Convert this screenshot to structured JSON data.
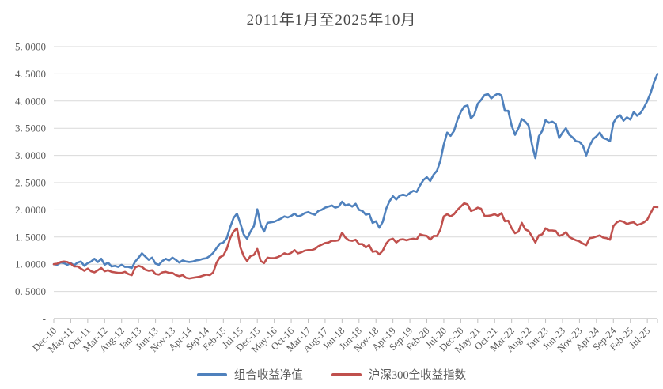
{
  "chart_data": {
    "type": "line",
    "title": "2011年1月至2025年10月",
    "x_unit": "month",
    "x_start": "Dec-10",
    "x_end": "Oct-25",
    "n_points": 179,
    "x_tick_interval_months": 5,
    "x_tick_labels": [
      "Dec-10",
      "May-11",
      "Oct-11",
      "Mar-12",
      "Aug-12",
      "Jan-13",
      "Jun-13",
      "Nov-13",
      "Apr-14",
      "Sep-14",
      "Feb-15",
      "Jul-15",
      "Dec-15",
      "May-16",
      "Oct-16",
      "Mar-17",
      "Aug-17",
      "Jan-18",
      "Jun-18",
      "Nov-18",
      "Apr-19",
      "Sep-19",
      "Feb-20",
      "Jul-20",
      "Dec-20",
      "May-21",
      "Oct-21",
      "Mar-22",
      "Aug-22",
      "Jan-23",
      "Jun-23",
      "Nov-23",
      "Apr-24",
      "Sep-24",
      "Feb-25",
      "Jul-25"
    ],
    "ylim": [
      0,
      5
    ],
    "y_tick_step": 0.5,
    "y_tick_labels_top_to_bottom": [
      "5. 0000",
      "4. 5000",
      "4. 0000",
      "3. 5000",
      "3. 0000",
      "2. 5000",
      "2. 0000",
      "1. 5000",
      "1. 0000",
      "0. 5000",
      "-"
    ],
    "grid": "horizontal",
    "legend_position": "bottom",
    "colors": {
      "gridline": "#D9D9D9",
      "axis": "#BFBFBF",
      "axis_text": "#595959",
      "title_text": "#474747"
    },
    "series": [
      {
        "name": "组合收益净值",
        "color": "#4F81BD",
        "values": [
          1.0,
          0.99,
          1.03,
          1.02,
          0.99,
          1.02,
          0.98,
          1.03,
          1.05,
          0.97,
          1.02,
          1.05,
          1.1,
          1.04,
          1.1,
          0.99,
          1.03,
          0.96,
          0.97,
          0.95,
          0.99,
          0.95,
          0.95,
          0.93,
          1.05,
          1.12,
          1.2,
          1.14,
          1.08,
          1.12,
          1.01,
          0.99,
          1.06,
          1.1,
          1.07,
          1.12,
          1.08,
          1.03,
          1.07,
          1.05,
          1.04,
          1.05,
          1.07,
          1.08,
          1.1,
          1.11,
          1.15,
          1.21,
          1.3,
          1.38,
          1.4,
          1.48,
          1.68,
          1.85,
          1.93,
          1.75,
          1.55,
          1.47,
          1.6,
          1.7,
          2.01,
          1.72,
          1.6,
          1.76,
          1.77,
          1.78,
          1.81,
          1.84,
          1.88,
          1.86,
          1.89,
          1.93,
          1.88,
          1.9,
          1.94,
          1.96,
          1.93,
          1.91,
          1.98,
          2.0,
          2.04,
          2.06,
          2.08,
          2.04,
          2.06,
          2.15,
          2.08,
          2.1,
          2.06,
          2.11,
          2.0,
          1.98,
          1.91,
          1.93,
          1.76,
          1.79,
          1.67,
          1.78,
          2.02,
          2.16,
          2.25,
          2.19,
          2.26,
          2.28,
          2.26,
          2.31,
          2.35,
          2.33,
          2.45,
          2.55,
          2.6,
          2.53,
          2.65,
          2.72,
          2.91,
          3.2,
          3.42,
          3.36,
          3.45,
          3.65,
          3.8,
          3.9,
          3.92,
          3.68,
          3.75,
          3.95,
          4.02,
          4.11,
          4.13,
          4.05,
          4.1,
          4.14,
          4.1,
          3.82,
          3.82,
          3.55,
          3.38,
          3.5,
          3.67,
          3.62,
          3.55,
          3.2,
          2.95,
          3.35,
          3.45,
          3.65,
          3.6,
          3.62,
          3.58,
          3.32,
          3.42,
          3.5,
          3.38,
          3.33,
          3.26,
          3.25,
          3.18,
          3.0,
          3.18,
          3.3,
          3.35,
          3.42,
          3.32,
          3.3,
          3.26,
          3.6,
          3.7,
          3.74,
          3.64,
          3.7,
          3.66,
          3.8,
          3.73,
          3.78,
          3.88,
          4.0,
          4.15,
          4.35,
          4.5
        ]
      },
      {
        "name": "沪深300全收益指数",
        "color": "#C0504D",
        "values": [
          1.0,
          1.01,
          1.04,
          1.05,
          1.04,
          1.01,
          0.96,
          0.96,
          0.92,
          0.88,
          0.92,
          0.87,
          0.85,
          0.89,
          0.93,
          0.87,
          0.89,
          0.86,
          0.85,
          0.84,
          0.84,
          0.86,
          0.82,
          0.8,
          0.94,
          0.97,
          0.95,
          0.9,
          0.88,
          0.89,
          0.82,
          0.81,
          0.85,
          0.86,
          0.84,
          0.84,
          0.8,
          0.78,
          0.8,
          0.75,
          0.74,
          0.75,
          0.76,
          0.77,
          0.79,
          0.81,
          0.8,
          0.85,
          1.03,
          1.13,
          1.16,
          1.28,
          1.48,
          1.6,
          1.66,
          1.31,
          1.15,
          1.06,
          1.15,
          1.17,
          1.28,
          1.06,
          1.02,
          1.12,
          1.11,
          1.11,
          1.13,
          1.16,
          1.2,
          1.18,
          1.21,
          1.26,
          1.2,
          1.22,
          1.25,
          1.26,
          1.26,
          1.28,
          1.33,
          1.36,
          1.39,
          1.4,
          1.43,
          1.43,
          1.44,
          1.58,
          1.49,
          1.44,
          1.43,
          1.45,
          1.37,
          1.37,
          1.31,
          1.35,
          1.23,
          1.24,
          1.18,
          1.25,
          1.38,
          1.45,
          1.47,
          1.4,
          1.45,
          1.46,
          1.44,
          1.46,
          1.47,
          1.46,
          1.55,
          1.53,
          1.52,
          1.45,
          1.52,
          1.52,
          1.64,
          1.88,
          1.92,
          1.88,
          1.92,
          2.0,
          2.06,
          2.12,
          2.1,
          1.98,
          2.0,
          2.04,
          2.02,
          1.89,
          1.89,
          1.9,
          1.92,
          1.89,
          1.94,
          1.79,
          1.8,
          1.66,
          1.57,
          1.6,
          1.76,
          1.64,
          1.61,
          1.51,
          1.4,
          1.53,
          1.55,
          1.66,
          1.62,
          1.62,
          1.61,
          1.52,
          1.54,
          1.59,
          1.5,
          1.47,
          1.44,
          1.42,
          1.38,
          1.35,
          1.48,
          1.49,
          1.51,
          1.53,
          1.49,
          1.48,
          1.45,
          1.7,
          1.77,
          1.8,
          1.78,
          1.74,
          1.76,
          1.77,
          1.72,
          1.74,
          1.77,
          1.82,
          1.94,
          2.06,
          2.05
        ]
      }
    ]
  }
}
